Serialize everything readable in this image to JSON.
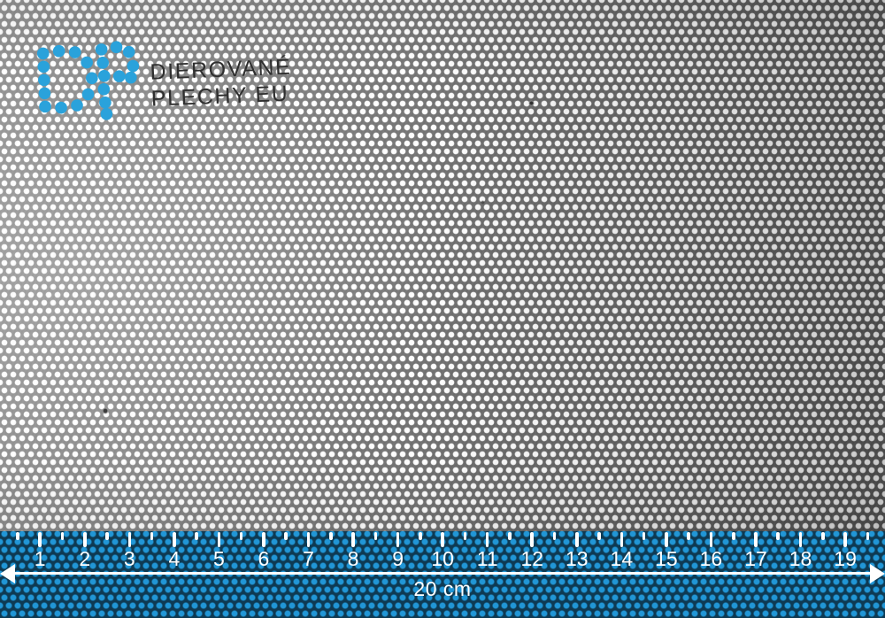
{
  "logo": {
    "line1": "DIEROVANÉ",
    "line2": "PLECHY EU"
  },
  "ruler": {
    "numbers": [
      "1",
      "2",
      "3",
      "4",
      "5",
      "6",
      "7",
      "8",
      "9",
      "10",
      "11",
      "12",
      "13",
      "14",
      "15",
      "16",
      "17",
      "18",
      "19"
    ],
    "length_label": "20 cm"
  },
  "colors": {
    "brand_blue": "#2aa2db",
    "logo_text": "#2f2f2f",
    "hole": "#ffffff",
    "metal_light": "#909090",
    "metal_dark": "#585858",
    "ruler_band": "#0e3a53",
    "ruler_dot": "#2196d6",
    "ruler_ink": "#ffffff"
  }
}
